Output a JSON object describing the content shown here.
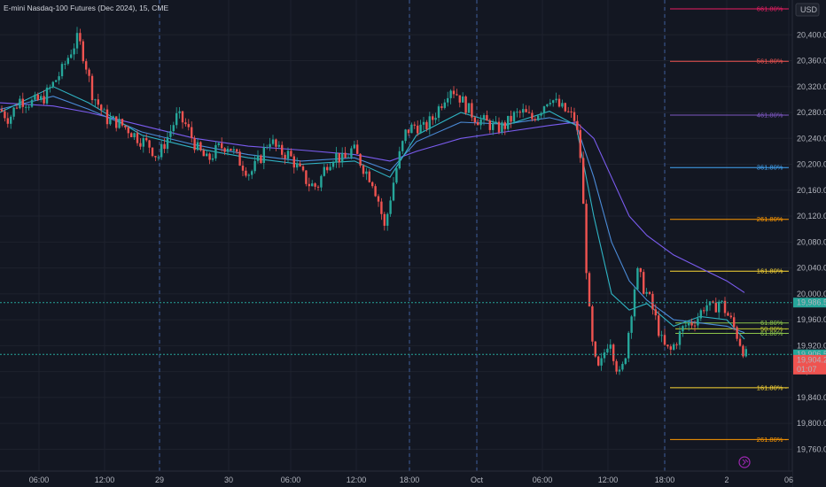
{
  "header": {
    "title": "E-mini Nasdaq-100 Futures (Dec 2024), 15, CME",
    "currency_button": "USD"
  },
  "colors": {
    "background": "#131722",
    "grid": "#1e222d",
    "candle_up": "#26a69a",
    "candle_down": "#ef5350",
    "ma_purple": "#7b5cf0",
    "ma_blue": "#4b8bd8",
    "ma_cyan": "#2fb4c4",
    "price_green": "#26a69a",
    "price_red": "#ef5350"
  },
  "chart_data": {
    "type": "candlestick",
    "ylim": [
      19740,
      20440
    ],
    "y_ticks": [
      "19,760.00",
      "19,800.00",
      "19,840.00",
      "19,880.00",
      "19,920.00",
      "19,960.00",
      "20,000.00",
      "20,040.00",
      "20,080.00",
      "20,120.00",
      "20,160.00",
      "20,200.00",
      "20,240.00",
      "20,280.00",
      "20,320.00",
      "20,360.00",
      "20,400.00"
    ],
    "x_ticks": [
      "06:00",
      "12:00",
      "29",
      "30",
      "06:00",
      "12:00",
      "18:00",
      "Oct",
      "06:00",
      "12:00",
      "18:00",
      "2",
      "06"
    ],
    "session_separators": [
      "29",
      "18:00",
      "Oct",
      "18:00"
    ],
    "fib_levels_upper": [
      {
        "label": "661.80%",
        "price": 20440,
        "color": "#e91e63"
      },
      {
        "label": "561.80%",
        "price": 20359,
        "color": "#ef5350"
      },
      {
        "label": "461.80%",
        "price": 20276,
        "color": "#7e57c2"
      },
      {
        "label": "361.80%",
        "price": 20195,
        "color": "#42a5f5"
      },
      {
        "label": "261.80%",
        "price": 20115,
        "color": "#ff9800"
      },
      {
        "label": "161.80%",
        "price": 20035,
        "color": "#fdd835"
      }
    ],
    "fib_levels_mid": [
      {
        "label": "61.80%",
        "price": 19955,
        "color": "#8bc34a"
      },
      {
        "label": "50.00%",
        "price": 19946,
        "color": "#c0ca33"
      },
      {
        "label": "61.80%",
        "price": 19939,
        "color": "#8bc34a"
      }
    ],
    "fib_levels_lower": [
      {
        "label": "161.80%",
        "price": 19855,
        "color": "#fdd835"
      },
      {
        "label": "261.80%",
        "price": 19775,
        "color": "#ff9800"
      }
    ],
    "price_labels": [
      {
        "text": "19,986.50",
        "price": 19986.5,
        "color": "#26a69a"
      },
      {
        "text": "19,906.50",
        "price": 19906.5,
        "color": "#26a69a"
      },
      {
        "text": "19,904.25",
        "price": 19904.25,
        "color": "#ef5350",
        "sub": "01:07"
      }
    ],
    "ohlc_path": [
      [
        0,
        20285
      ],
      [
        10,
        20270
      ],
      [
        22,
        20300
      ],
      [
        34,
        20295
      ],
      [
        48,
        20300
      ],
      [
        58,
        20320
      ],
      [
        70,
        20345
      ],
      [
        80,
        20375
      ],
      [
        88,
        20395
      ],
      [
        96,
        20360
      ],
      [
        104,
        20310
      ],
      [
        112,
        20290
      ],
      [
        120,
        20270
      ],
      [
        132,
        20265
      ],
      [
        144,
        20255
      ],
      [
        156,
        20240
      ],
      [
        168,
        20230
      ],
      [
        178,
        20210
      ],
      [
        190,
        20245
      ],
      [
        200,
        20275
      ],
      [
        210,
        20260
      ],
      [
        222,
        20225
      ],
      [
        234,
        20205
      ],
      [
        246,
        20225
      ],
      [
        258,
        20230
      ],
      [
        270,
        20205
      ],
      [
        282,
        20185
      ],
      [
        294,
        20210
      ],
      [
        304,
        20240
      ],
      [
        314,
        20220
      ],
      [
        326,
        20215
      ],
      [
        338,
        20190
      ],
      [
        348,
        20170
      ],
      [
        358,
        20165
      ],
      [
        368,
        20200
      ],
      [
        378,
        20215
      ],
      [
        388,
        20205
      ],
      [
        398,
        20225
      ],
      [
        410,
        20195
      ],
      [
        420,
        20175
      ],
      [
        428,
        20140
      ],
      [
        434,
        20100
      ],
      [
        442,
        20160
      ],
      [
        450,
        20210
      ],
      [
        458,
        20250
      ],
      [
        468,
        20260
      ],
      [
        478,
        20255
      ],
      [
        488,
        20270
      ],
      [
        498,
        20295
      ],
      [
        508,
        20320
      ],
      [
        518,
        20305
      ],
      [
        528,
        20285
      ],
      [
        538,
        20270
      ],
      [
        548,
        20265
      ],
      [
        560,
        20255
      ],
      [
        570,
        20260
      ],
      [
        580,
        20275
      ],
      [
        590,
        20280
      ],
      [
        600,
        20270
      ],
      [
        610,
        20285
      ],
      [
        620,
        20305
      ],
      [
        630,
        20290
      ],
      [
        640,
        20280
      ],
      [
        648,
        20270
      ],
      [
        654,
        20230
      ],
      [
        658,
        20140
      ],
      [
        662,
        20030
      ],
      [
        666,
        19950
      ],
      [
        670,
        19900
      ],
      [
        676,
        19880
      ],
      [
        682,
        19910
      ],
      [
        688,
        19935
      ],
      [
        694,
        19895
      ],
      [
        700,
        19870
      ],
      [
        706,
        19910
      ],
      [
        712,
        19970
      ],
      [
        716,
        20010
      ],
      [
        720,
        20035
      ],
      [
        726,
        20010
      ],
      [
        732,
        19995
      ],
      [
        740,
        19960
      ],
      [
        748,
        19920
      ],
      [
        756,
        19910
      ],
      [
        764,
        19930
      ],
      [
        772,
        19950
      ],
      [
        780,
        19955
      ],
      [
        788,
        19965
      ],
      [
        796,
        19985
      ],
      [
        804,
        19975
      ],
      [
        812,
        19990
      ],
      [
        820,
        19970
      ],
      [
        826,
        19955
      ],
      [
        832,
        19935
      ],
      [
        838,
        19915
      ],
      [
        842,
        19904
      ]
    ],
    "moving_averages": [
      {
        "name": "ma-slow-purple",
        "color": "#7b5cf0",
        "points": [
          [
            0,
            20295
          ],
          [
            60,
            20290
          ],
          [
            100,
            20280
          ],
          [
            160,
            20260
          ],
          [
            220,
            20240
          ],
          [
            280,
            20228
          ],
          [
            340,
            20222
          ],
          [
            400,
            20215
          ],
          [
            440,
            20205
          ],
          [
            470,
            20220
          ],
          [
            520,
            20240
          ],
          [
            570,
            20250
          ],
          [
            620,
            20260
          ],
          [
            650,
            20265
          ],
          [
            670,
            20240
          ],
          [
            690,
            20180
          ],
          [
            710,
            20120
          ],
          [
            730,
            20090
          ],
          [
            760,
            20060
          ],
          [
            790,
            20040
          ],
          [
            820,
            20020
          ],
          [
            840,
            20002
          ]
        ]
      },
      {
        "name": "ma-mid-blue",
        "color": "#4b8bd8",
        "points": [
          [
            0,
            20285
          ],
          [
            60,
            20305
          ],
          [
            100,
            20285
          ],
          [
            160,
            20250
          ],
          [
            220,
            20230
          ],
          [
            280,
            20215
          ],
          [
            340,
            20205
          ],
          [
            400,
            20210
          ],
          [
            440,
            20190
          ],
          [
            470,
            20235
          ],
          [
            520,
            20265
          ],
          [
            570,
            20262
          ],
          [
            620,
            20272
          ],
          [
            650,
            20262
          ],
          [
            670,
            20180
          ],
          [
            690,
            20080
          ],
          [
            710,
            20020
          ],
          [
            730,
            19990
          ],
          [
            760,
            19960
          ],
          [
            790,
            19955
          ],
          [
            820,
            19950
          ],
          [
            840,
            19940
          ]
        ]
      },
      {
        "name": "ma-fast-cyan",
        "color": "#2fb4c4",
        "points": [
          [
            0,
            20280
          ],
          [
            60,
            20320
          ],
          [
            100,
            20295
          ],
          [
            160,
            20245
          ],
          [
            220,
            20225
          ],
          [
            280,
            20210
          ],
          [
            340,
            20200
          ],
          [
            400,
            20205
          ],
          [
            440,
            20180
          ],
          [
            470,
            20245
          ],
          [
            520,
            20280
          ],
          [
            570,
            20260
          ],
          [
            620,
            20282
          ],
          [
            650,
            20260
          ],
          [
            670,
            20120
          ],
          [
            690,
            20000
          ],
          [
            710,
            19975
          ],
          [
            730,
            19985
          ],
          [
            760,
            19950
          ],
          [
            790,
            19965
          ],
          [
            820,
            19960
          ],
          [
            840,
            19930
          ]
        ]
      }
    ]
  }
}
